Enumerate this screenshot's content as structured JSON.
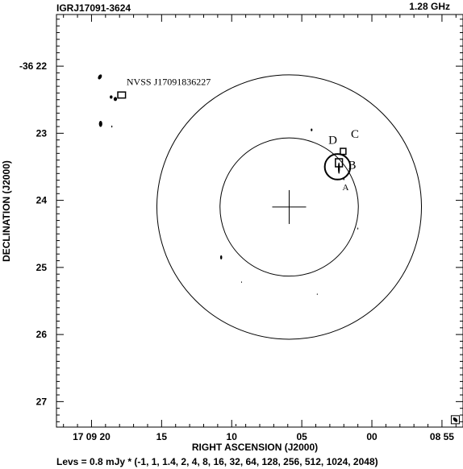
{
  "chart_data": {
    "type": "contour",
    "title_left": "IGRJ17091-3624",
    "title_right": "1.28 GHz",
    "xlabel": "RIGHT ASCENSION (J2000)",
    "ylabel": "DECLINATION (J2000)",
    "footer": "Levs = 0.8 mJy * (-1, 1, 1.4, 2, 4, 8, 16, 32, 64, 128, 256, 512, 1024, 2048)",
    "x_ticks": [
      {
        "label": "17 09 20",
        "value": 20
      },
      {
        "label": "15",
        "value": 15
      },
      {
        "label": "10",
        "value": 10
      },
      {
        "label": "05",
        "value": 5
      },
      {
        "label": "00",
        "value": 0
      },
      {
        "label": "08 55",
        "value": -5
      }
    ],
    "y_ticks": [
      {
        "label": "-36 22",
        "value": 22
      },
      {
        "label": "23",
        "value": 23
      },
      {
        "label": "24",
        "value": 24
      },
      {
        "label": "25",
        "value": 25
      },
      {
        "label": "26",
        "value": 26
      },
      {
        "label": "27",
        "value": 27
      }
    ],
    "xlim": [
      22.5,
      -6.5
    ],
    "ylim": [
      21.23,
      27.38
    ],
    "pointing_center": {
      "ra": 5.9,
      "dec": 24.1
    },
    "circle_radii_arcmin": [
      1.03,
      1.97
    ],
    "labels": [
      {
        "text": "NVSS J17091836227",
        "ra": 17.5,
        "dec": 22.28,
        "size": 12
      },
      {
        "text": "D",
        "ra": 3.1,
        "dec": 23.16,
        "size": 15
      },
      {
        "text": "C",
        "ra": 1.5,
        "dec": 23.07,
        "size": 15
      },
      {
        "text": "B",
        "ra": 1.7,
        "dec": 23.53,
        "size": 15
      },
      {
        "text": "A",
        "ra": 2.1,
        "dec": 23.85,
        "size": 11
      }
    ],
    "markers": [
      {
        "kind": "box",
        "ra": 17.85,
        "dec": 22.43,
        "w": 0.55,
        "h": 0.09
      },
      {
        "kind": "box",
        "ra": 2.05,
        "dec": 23.27,
        "w": 0.4,
        "h": 0.09
      },
      {
        "kind": "box",
        "ra": 2.35,
        "dec": 23.44,
        "w": 0.5,
        "h": 0.12
      },
      {
        "kind": "circle",
        "ra": 2.45,
        "dec": 23.5,
        "r": 0.19
      }
    ],
    "sources": [
      {
        "ra": 19.4,
        "dec": 22.16,
        "rx": 0.12,
        "ry": 0.04,
        "rot": 30
      },
      {
        "ra": 18.6,
        "dec": 22.46,
        "rx": 0.1,
        "ry": 0.025
      },
      {
        "ra": 18.3,
        "dec": 22.49,
        "rx": 0.12,
        "ry": 0.03
      },
      {
        "ra": 19.35,
        "dec": 22.86,
        "rx": 0.12,
        "ry": 0.045
      },
      {
        "ra": 18.55,
        "dec": 22.9,
        "rx": 0.04,
        "ry": 0.015
      },
      {
        "ra": 4.3,
        "dec": 22.95,
        "rx": 0.06,
        "ry": 0.02
      },
      {
        "ra": 2.35,
        "dec": 23.52,
        "rx": 0.07,
        "ry": 0.085
      },
      {
        "ra": 2.0,
        "dec": 23.68,
        "rx": 0.04,
        "ry": 0.02
      },
      {
        "ra": 1.0,
        "dec": 24.42,
        "rx": 0.03,
        "ry": 0.015
      },
      {
        "ra": 10.75,
        "dec": 24.85,
        "rx": 0.07,
        "ry": 0.03
      },
      {
        "ra": 9.3,
        "dec": 25.22,
        "rx": 0.025,
        "ry": 0.012
      },
      {
        "ra": 3.9,
        "dec": 25.4,
        "rx": 0.025,
        "ry": 0.012
      },
      {
        "ra": 9.7,
        "dec": 27.35,
        "rx": 0.05,
        "ry": 0.015
      }
    ],
    "beam": {
      "ra": -5.95,
      "dec": 27.27
    }
  }
}
